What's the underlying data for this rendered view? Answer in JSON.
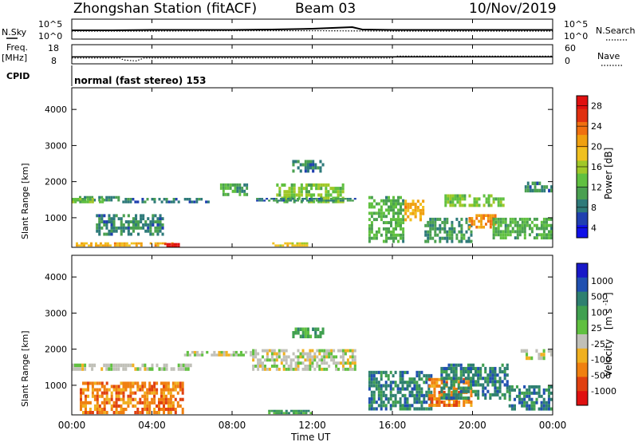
{
  "header": {
    "title": "Zhongshan Station (fitACF)",
    "beam": "Beam 03",
    "date": "10/Nov/2019"
  },
  "noise_panel": {
    "left_label": "N.Sky",
    "right_label": "N.Search",
    "y_tick_top": "10^5",
    "y_tick_bottom": "10^0",
    "right_tick_top": "10^5",
    "right_tick_bottom": "10^0"
  },
  "freq_panel": {
    "left_label_1": "Freq.",
    "left_label_2": "[MHz]",
    "y_tick_top": "18",
    "y_tick_bottom": "8",
    "right_label": "Nave",
    "right_tick_top": "60",
    "right_tick_bottom": "0"
  },
  "cpid": {
    "label": "CPID",
    "text": "normal (fast stereo) 153"
  },
  "x_axis": {
    "label": "Time UT",
    "ticks": [
      "00:00",
      "04:00",
      "08:00",
      "12:00",
      "16:00",
      "20:00",
      "00:00"
    ]
  },
  "y_axis": {
    "label": "Slant Range [km]",
    "ticks": [
      "1000",
      "2000",
      "3000",
      "4000"
    ]
  },
  "power_colorbar": {
    "label": "Power [dB]",
    "ticks": [
      "4",
      "8",
      "12",
      "16",
      "20",
      "24",
      "28"
    ],
    "colors": [
      "#1010e8",
      "#2040b0",
      "#2e7a7a",
      "#4aa050",
      "#60c040",
      "#a0c828",
      "#f0c020",
      "#f0a010",
      "#f07010",
      "#e03010",
      "#e01010"
    ]
  },
  "velocity_colorbar": {
    "label_main": "Velocity",
    "label_unit": "[m s",
    "label_exp": "-1",
    "label_close": "]",
    "ticks": [
      "1000",
      "500",
      "100",
      "25",
      "-25",
      "-100",
      "-500",
      "-1000"
    ],
    "colors": [
      "#1818c8",
      "#2050b0",
      "#2e8070",
      "#40a050",
      "#60c040",
      "#c0c0b8",
      "#f0b020",
      "#f08010",
      "#e04010",
      "#e01010"
    ]
  },
  "chart_data": [
    {
      "type": "line",
      "name": "noise",
      "x_range_hours": [
        0,
        24
      ],
      "series": [
        {
          "name": "N.Sky",
          "x": [
            0,
            2,
            4,
            6,
            8,
            10,
            12,
            13,
            14,
            14.5,
            16,
            18,
            20,
            22,
            24
          ],
          "values": [
            2.2,
            2.2,
            2.3,
            2.3,
            2.3,
            2.4,
            2.6,
            2.8,
            3.0,
            2.4,
            2.3,
            2.3,
            2.3,
            2.3,
            2.3
          ]
        },
        {
          "name": "N.Search",
          "x": [
            0,
            4,
            8,
            12,
            16,
            20,
            24
          ],
          "values": [
            2.0,
            2.0,
            2.1,
            2.1,
            2.0,
            2.0,
            2.0
          ]
        }
      ]
    },
    {
      "type": "line",
      "name": "frequency-nave",
      "x_range_hours": [
        0,
        24
      ],
      "series": [
        {
          "name": "Freq",
          "x": [
            0,
            2.4,
            2.6,
            3.2,
            3.6,
            16,
            16.2,
            24
          ],
          "values": [
            11,
            11,
            10,
            9.5,
            11,
            11,
            12,
            12
          ]
        },
        {
          "name": "Nave",
          "x": [
            0,
            24
          ],
          "values": [
            22,
            22
          ]
        }
      ]
    },
    {
      "type": "heatmap",
      "name": "power",
      "xlabel": "Time UT",
      "ylabel": "Slant Range [km]",
      "x_range_hours": [
        0,
        24
      ],
      "ylim": [
        180,
        4600
      ],
      "colorbar_label": "Power [dB]",
      "colorbar_range": [
        2,
        30
      ],
      "regions": [
        {
          "t": [
            0,
            2.4
          ],
          "r": [
            1450,
            1600
          ],
          "v": 10
        },
        {
          "t": [
            0,
            1.6
          ],
          "r": [
            1400,
            1550
          ],
          "v": 14
        },
        {
          "t": [
            0.2,
            5.2
          ],
          "r": [
            200,
            320
          ],
          "v": 20
        },
        {
          "t": [
            4.5,
            5.4
          ],
          "r": [
            180,
            300
          ],
          "v": 28
        },
        {
          "t": [
            1.2,
            4.6
          ],
          "r": [
            500,
            1100
          ],
          "v": 9
        },
        {
          "t": [
            2.4,
            5.4
          ],
          "r": [
            1400,
            1550
          ],
          "v": 8
        },
        {
          "t": [
            5.6,
            7.0
          ],
          "r": [
            1400,
            1550
          ],
          "v": 8
        },
        {
          "t": [
            7.4,
            8.8
          ],
          "r": [
            1600,
            1950
          ],
          "v": 11
        },
        {
          "t": [
            10.2,
            13.6
          ],
          "r": [
            1400,
            1950
          ],
          "v": 14
        },
        {
          "t": [
            9.2,
            14.2
          ],
          "r": [
            1450,
            1550
          ],
          "v": 9
        },
        {
          "t": [
            10.0,
            11.8
          ],
          "r": [
            200,
            320
          ],
          "v": 18
        },
        {
          "t": [
            11.0,
            12.6
          ],
          "r": [
            2250,
            2600
          ],
          "v": 9
        },
        {
          "t": [
            14.8,
            16.6
          ],
          "r": [
            300,
            1600
          ],
          "v": 12
        },
        {
          "t": [
            16.6,
            17.6
          ],
          "r": [
            900,
            1500
          ],
          "v": 20
        },
        {
          "t": [
            17.6,
            20.0
          ],
          "r": [
            300,
            1000
          ],
          "v": 10
        },
        {
          "t": [
            18.6,
            21.6
          ],
          "r": [
            1300,
            1650
          ],
          "v": 14
        },
        {
          "t": [
            19.8,
            21.2
          ],
          "r": [
            700,
            1100
          ],
          "v": 22
        },
        {
          "t": [
            21.0,
            24.0
          ],
          "r": [
            400,
            1000
          ],
          "v": 12
        },
        {
          "t": [
            22.6,
            24.0
          ],
          "r": [
            1700,
            2000
          ],
          "v": 9
        }
      ]
    },
    {
      "type": "heatmap",
      "name": "velocity",
      "xlabel": "Time UT",
      "ylabel": "Slant Range [km]",
      "x_range_hours": [
        0,
        24
      ],
      "ylim": [
        180,
        4600
      ],
      "colorbar_label": "Velocity [m s-1]",
      "regions": [
        {
          "t": [
            0,
            6.0
          ],
          "r": [
            1400,
            1600
          ],
          "v": 0
        },
        {
          "t": [
            0.4,
            5.6
          ],
          "r": [
            200,
            1100
          ],
          "v": -150
        },
        {
          "t": [
            5.6,
            9.0
          ],
          "r": [
            1800,
            1950
          ],
          "v": 0
        },
        {
          "t": [
            9.0,
            14.2
          ],
          "r": [
            1400,
            2000
          ],
          "v": 10
        },
        {
          "t": [
            9.8,
            12.0
          ],
          "r": [
            200,
            320
          ],
          "v": 150
        },
        {
          "t": [
            11.0,
            12.6
          ],
          "r": [
            2300,
            2600
          ],
          "v": 80
        },
        {
          "t": [
            14.8,
            18.0
          ],
          "r": [
            300,
            1400
          ],
          "v": 300
        },
        {
          "t": [
            17.8,
            20.0
          ],
          "r": [
            400,
            1200
          ],
          "v": -100
        },
        {
          "t": [
            18.4,
            21.8
          ],
          "r": [
            600,
            1600
          ],
          "v": 200
        },
        {
          "t": [
            21.8,
            24.0
          ],
          "r": [
            300,
            1000
          ],
          "v": 300
        },
        {
          "t": [
            22.4,
            24.0
          ],
          "r": [
            1700,
            2000
          ],
          "v": 0
        }
      ]
    }
  ]
}
